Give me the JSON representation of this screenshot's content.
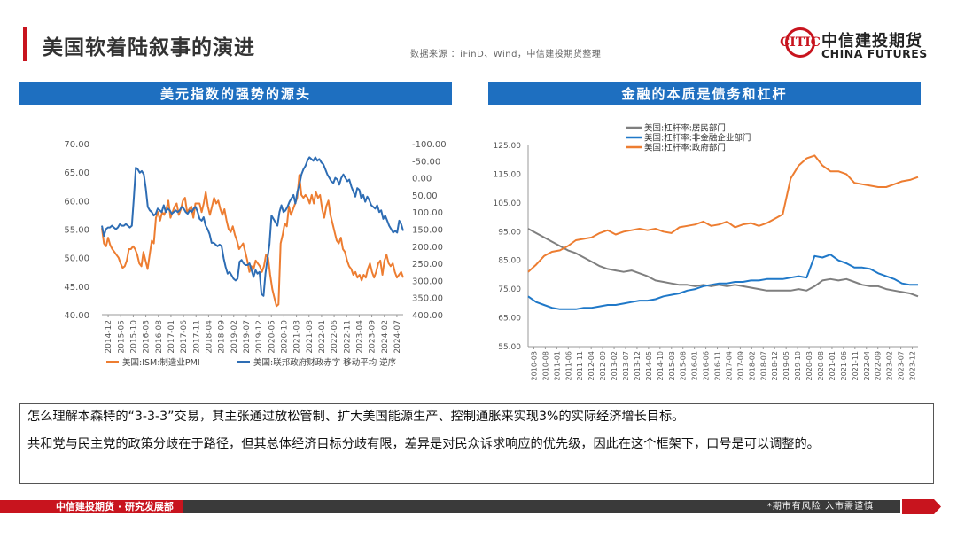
{
  "header": {
    "title": "美国软着陆叙事的演进",
    "source": "数据来源 ：iFinD、Wind，中信建投期货整理",
    "logo_cn": "中信建投期货",
    "logo_en": "CHINA FUTURES"
  },
  "colors": {
    "brand_red": "#c8141e",
    "panel_blue": "#1e6fc0",
    "series_orange": "#ed7d31",
    "series_blue": "#2e6db4",
    "series_gray": "#7f7f7f",
    "series_blue2": "#1f78c8"
  },
  "panels": {
    "left_title": "美元指数的强势的源头",
    "right_title": "金融的本质是债务和杠杆"
  },
  "chart_data": [
    {
      "type": "line",
      "x_ticks": [
        "2014-12",
        "2015-05",
        "2015-10",
        "2016-03",
        "2016-08",
        "2017-01",
        "2017-06",
        "2017-11",
        "2018-04",
        "2018-09",
        "2019-02",
        "2019-07",
        "2019-12",
        "2020-05",
        "2020-10",
        "2021-03",
        "2021-08",
        "2022-01",
        "2022-06",
        "2022-11",
        "2023-04",
        "2023-09",
        "2024-02",
        "2024-07"
      ],
      "y_left": {
        "ticks": [
          "70.00",
          "65.00",
          "60.00",
          "55.00",
          "50.00",
          "45.00",
          "40.00"
        ],
        "range": [
          40,
          70
        ]
      },
      "y_right": {
        "ticks": [
          "-100.00",
          "-50.00",
          "0.00",
          "50.00",
          "100.00",
          "150.00",
          "200.00",
          "250.00",
          "300.00",
          "350.00",
          "400.00"
        ],
        "range": [
          -100,
          400
        ],
        "inverted": true
      },
      "series": [
        {
          "name": "美国:ISM:制造业PMI",
          "axis": "left",
          "color": "#ed7d31",
          "values": [
            55.2,
            52.5,
            52.0,
            53.5,
            52.2,
            51.5,
            51.0,
            50.5,
            50.0,
            49.0,
            48.2,
            48.5,
            49.5,
            51.5,
            51.5,
            52.0,
            51.5,
            50.5,
            49.0,
            48.5,
            51.0,
            49.5,
            48.0,
            50.5,
            53.0,
            52.5,
            57.0,
            58.0,
            56.5,
            58.0,
            57.5,
            58.5,
            60.0,
            57.0,
            58.0,
            59.0,
            59.5,
            57.5,
            58.5,
            60.0,
            60.5,
            58.0,
            58.5,
            59.0,
            57.0,
            59.5,
            59.5,
            59.5,
            58.0,
            59.5,
            61.5,
            59.0,
            57.5,
            59.0,
            60.5,
            59.5,
            60.0,
            58.5,
            57.5,
            58.5,
            56.5,
            55.0,
            54.5,
            55.5,
            54.0,
            53.0,
            51.5,
            52.0,
            52.5,
            51.0,
            49.5,
            47.5,
            48.5,
            48.0,
            49.5,
            49.0,
            48.5,
            47.5,
            48.5,
            50.5,
            50.0,
            47.0,
            44.5,
            43.0,
            41.5,
            41.8,
            52.5,
            54.0,
            56.0,
            55.5,
            59.0,
            57.5,
            58.5,
            59.5,
            60.5,
            64.5,
            61.0,
            60.5,
            61.0,
            60.5,
            59.5,
            61.0,
            59.5,
            61.5,
            60.5,
            61.0,
            58.5,
            57.0,
            59.0,
            60.0,
            57.5,
            56.0,
            54.5,
            53.0,
            52.5,
            53.5,
            51.5,
            51.0,
            49.5,
            48.5,
            48.0,
            47.0,
            47.5,
            46.5,
            47.0,
            46.0,
            47.0,
            46.5,
            48.0,
            49.0,
            47.5,
            46.5,
            47.5,
            49.0,
            49.5,
            47.0,
            49.5,
            50.5,
            49.0,
            48.5,
            49.0,
            47.5,
            46.5,
            47.0,
            47.5,
            46.5
          ]
        },
        {
          "name": "美国:联邦政府财政赤字 移动平均 逆序",
          "axis": "right",
          "color": "#2e6db4",
          "values": [
            140,
            170,
            150,
            145,
            145,
            140,
            145,
            150,
            145,
            135,
            140,
            140,
            135,
            140,
            145,
            140,
            60,
            -30,
            -25,
            -15,
            -20,
            -10,
            30,
            85,
            95,
            100,
            110,
            105,
            90,
            95,
            100,
            80,
            100,
            90,
            95,
            105,
            100,
            95,
            100,
            95,
            85,
            90,
            100,
            105,
            95,
            100,
            90,
            85,
            100,
            120,
            125,
            115,
            140,
            150,
            165,
            190,
            190,
            195,
            200,
            195,
            200,
            235,
            260,
            280,
            275,
            285,
            295,
            300,
            295,
            245,
            240,
            250,
            255,
            255,
            250,
            270,
            290,
            270,
            280,
            275,
            340,
            345,
            280,
            235,
            195,
            110,
            120,
            130,
            140,
            100,
            80,
            100,
            95,
            85,
            70,
            60,
            50,
            75,
            40,
            20,
            -10,
            -25,
            -35,
            -50,
            -60,
            -55,
            -50,
            -60,
            -50,
            -55,
            -45,
            -40,
            -25,
            -10,
            0,
            10,
            15,
            0,
            5,
            20,
            0,
            -10,
            0,
            10,
            5,
            25,
            40,
            55,
            30,
            35,
            60,
            50,
            70,
            55,
            65,
            80,
            85,
            90,
            80,
            100,
            95,
            120,
            110,
            125,
            140,
            150,
            160,
            155,
            160,
            125,
            135,
            155
          ]
        }
      ]
    },
    {
      "type": "line",
      "x_ticks": [
        "2010-03",
        "2010-08",
        "2011-01",
        "2011-06",
        "2011-11",
        "2012-04",
        "2012-09",
        "2013-02",
        "2013-07",
        "2013-12",
        "2014-05",
        "2014-10",
        "2015-03",
        "2015-08",
        "2016-01",
        "2016-06",
        "2016-11",
        "2017-04",
        "2017-09",
        "2018-02",
        "2018-07",
        "2018-12",
        "2019-05",
        "2019-10",
        "2020-03",
        "2020-08",
        "2021-01",
        "2021-06",
        "2021-11",
        "2022-04",
        "2022-09",
        "2023-02",
        "2023-07",
        "2023-12"
      ],
      "y": {
        "ticks": [
          "125.00",
          "115.00",
          "105.00",
          "95.00",
          "85.00",
          "75.00",
          "65.00",
          "55.00"
        ],
        "range": [
          55,
          125
        ]
      },
      "series": [
        {
          "name": "美国:杠杆率:居民部门",
          "color": "#7f7f7f",
          "values": [
            96.0,
            94.5,
            93.0,
            91.5,
            90.0,
            88.5,
            87.5,
            86.0,
            84.5,
            83.0,
            82.0,
            81.5,
            81.0,
            81.5,
            80.5,
            79.5,
            78.0,
            77.5,
            77.0,
            76.5,
            76.5,
            76.0,
            76.5,
            76.0,
            76.5,
            76.0,
            76.5,
            76.0,
            75.5,
            75.0,
            74.5,
            74.5,
            74.5,
            74.5,
            75.0,
            74.5,
            76.0,
            78.0,
            78.5,
            78.0,
            78.5,
            77.5,
            76.5,
            76.0,
            76.0,
            75.0,
            74.5,
            74.0,
            73.5,
            72.5
          ]
        },
        {
          "name": "美国:杠杆率:非金融企业部门",
          "color": "#1f78c8",
          "values": [
            72.5,
            70.5,
            69.5,
            68.5,
            68.0,
            68.0,
            68.0,
            68.5,
            68.5,
            69.0,
            69.5,
            69.5,
            70.0,
            70.5,
            71.0,
            71.0,
            71.5,
            72.5,
            73.0,
            73.5,
            74.5,
            75.0,
            76.0,
            76.5,
            77.0,
            77.0,
            77.5,
            77.5,
            78.0,
            78.0,
            78.5,
            78.5,
            78.5,
            79.0,
            79.5,
            79.0,
            86.5,
            86.0,
            87.0,
            85.0,
            84.0,
            82.5,
            82.5,
            82.0,
            80.5,
            79.5,
            78.5,
            77.0,
            76.5,
            76.5
          ]
        },
        {
          "name": "美国:杠杆率:政府部门",
          "color": "#ed7d31",
          "values": [
            81.0,
            83.5,
            86.5,
            88.0,
            88.5,
            90.0,
            92.0,
            92.5,
            93.0,
            94.5,
            95.5,
            94.0,
            95.0,
            95.5,
            96.0,
            95.5,
            96.0,
            95.0,
            94.5,
            96.5,
            97.0,
            97.5,
            98.5,
            97.0,
            97.5,
            98.5,
            96.5,
            97.5,
            98.0,
            97.0,
            98.0,
            99.5,
            101.0,
            113.5,
            118.0,
            120.5,
            121.5,
            118.0,
            116.0,
            116.0,
            115.0,
            112.0,
            111.5,
            111.0,
            110.5,
            110.5,
            111.5,
            112.5,
            113.0,
            114.0
          ]
        }
      ]
    }
  ],
  "notes": {
    "line1": "怎么理解本森特的“3-3-3”交易，其主张通过放松管制、扩大美国能源生产、控制通胀来实现3%的实际经济增长目标。",
    "line2": "共和党与民主党的政策分歧在于路径，但其总体经济目标分歧有限，差异是对民众诉求响应的优先级，因此在这个框架下，口号是可以调整的。"
  },
  "footer": {
    "left": "中信建投期货 · 研究发展部",
    "right": "*期市有风险  入市需谨慎"
  }
}
